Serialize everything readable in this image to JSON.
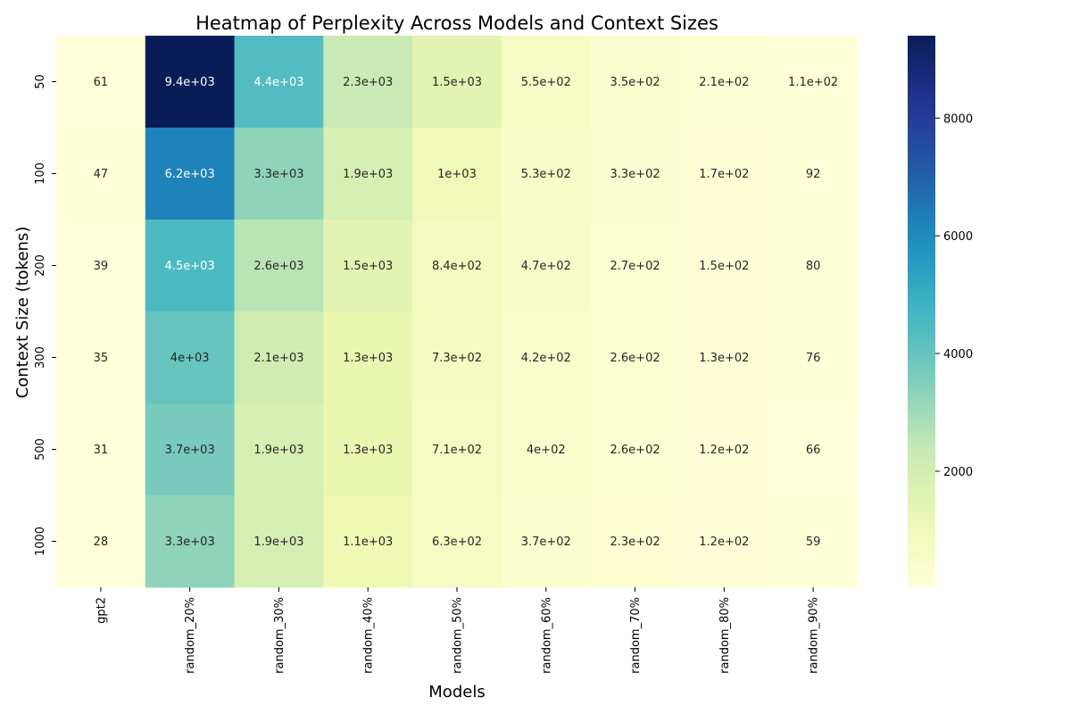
{
  "chart_data": {
    "type": "heatmap",
    "title": "Heatmap of Perplexity Across Models and Context Sizes",
    "xlabel": "Models",
    "ylabel": "Context Size (tokens)",
    "x_categories": [
      "gpt2",
      "random_20%",
      "random_30%",
      "random_40%",
      "random_50%",
      "random_60%",
      "random_70%",
      "random_80%",
      "random_90%"
    ],
    "y_categories": [
      "50",
      "100",
      "200",
      "300",
      "500",
      "1000"
    ],
    "values": [
      [
        61,
        9400,
        4400,
        2300,
        1500,
        550,
        350,
        210,
        110
      ],
      [
        47,
        6200,
        3300,
        1900,
        1000,
        530,
        330,
        170,
        92
      ],
      [
        39,
        4500,
        2600,
        1500,
        840,
        470,
        270,
        150,
        80
      ],
      [
        35,
        4000,
        2100,
        1300,
        730,
        420,
        260,
        130,
        76
      ],
      [
        31,
        3700,
        1900,
        1300,
        710,
        400,
        260,
        120,
        66
      ],
      [
        28,
        3300,
        1900,
        1100,
        630,
        370,
        230,
        120,
        59
      ]
    ],
    "cell_labels": [
      [
        "61",
        "9.4e+03",
        "4.4e+03",
        "2.3e+03",
        "1.5e+03",
        "5.5e+02",
        "3.5e+02",
        "2.1e+02",
        "1.1e+02"
      ],
      [
        "47",
        "6.2e+03",
        "3.3e+03",
        "1.9e+03",
        "1e+03",
        "5.3e+02",
        "3.3e+02",
        "1.7e+02",
        "92"
      ],
      [
        "39",
        "4.5e+03",
        "2.6e+03",
        "1.5e+03",
        "8.4e+02",
        "4.7e+02",
        "2.7e+02",
        "1.5e+02",
        "80"
      ],
      [
        "35",
        "4e+03",
        "2.1e+03",
        "1.3e+03",
        "7.3e+02",
        "4.2e+02",
        "2.6e+02",
        "1.3e+02",
        "76"
      ],
      [
        "31",
        "3.7e+03",
        "1.9e+03",
        "1.3e+03",
        "7.1e+02",
        "4e+02",
        "2.6e+02",
        "1.2e+02",
        "66"
      ],
      [
        "28",
        "3.3e+03",
        "1.9e+03",
        "1.1e+03",
        "6.3e+02",
        "3.7e+02",
        "2.3e+02",
        "1.2e+02",
        "59"
      ]
    ],
    "colormap": "YlGnBu",
    "color_range": [
      28,
      9400
    ],
    "colorbar_ticks": [
      2000,
      4000,
      6000,
      8000
    ],
    "colorbar_tick_labels": [
      "2000",
      "4000",
      "6000",
      "8000"
    ]
  }
}
